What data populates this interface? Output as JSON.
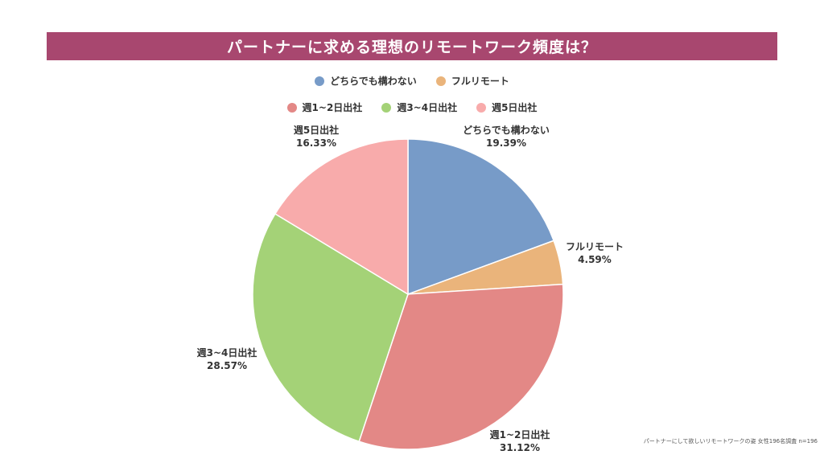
{
  "title": "パートナーに求める理想のリモートワーク頻度は？",
  "footnote": "パートナーにして欲しいリモートワークの姿 女性196名調査 n=196",
  "chart_data": {
    "type": "pie",
    "title": "パートナーに求める理想のリモートワーク頻度は？",
    "slices": [
      {
        "label": "どちらでも構わない",
        "value": 19.39,
        "value_label": "19.39%",
        "color": "#779bc8"
      },
      {
        "label": "フルリモート",
        "value": 4.59,
        "value_label": "4.59%",
        "color": "#eab47b"
      },
      {
        "label": "週1~2日出社",
        "value": 31.12,
        "value_label": "31.12%",
        "color": "#e38886"
      },
      {
        "label": "週3~4日出社",
        "value": 28.57,
        "value_label": "28.57%",
        "color": "#a4d277"
      },
      {
        "label": "週5日出社",
        "value": 16.33,
        "value_label": "16.33%",
        "color": "#f8abab"
      }
    ],
    "legend": {
      "placement": "top-center",
      "rows": [
        [
          "どちらでも構わない",
          "フルリモート"
        ],
        [
          "週1~2日出社",
          "週3~4日出社",
          "週5日出社"
        ]
      ]
    },
    "start_angle": "12 o'clock",
    "direction": "clockwise"
  }
}
